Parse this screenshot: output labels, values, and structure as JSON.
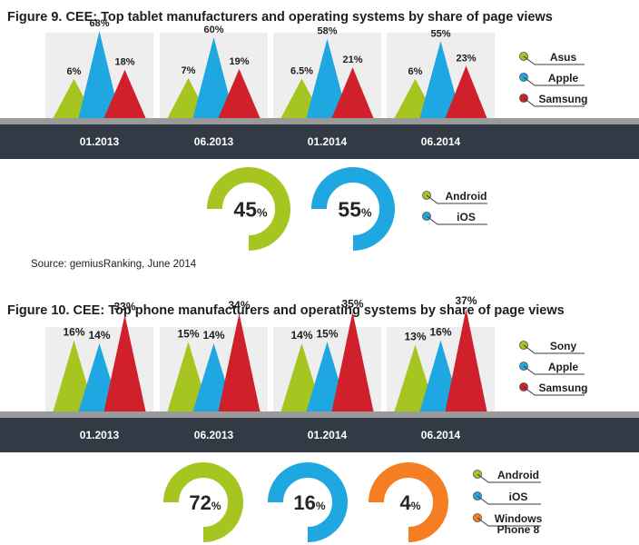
{
  "colors": {
    "green": "#a7c520",
    "blue": "#1ea7e0",
    "red": "#d0202c",
    "orange": "#f57e22",
    "panel": "#eeeeee",
    "bar": "#323a45",
    "bar_top": "#9a9a9a"
  },
  "figure9": {
    "title": "Figure 9. CEE: Top tablet manufacturers and operating systems by share of page views",
    "source": "Source: gemiusRanking, June 2014"
  },
  "figure10": {
    "title": "Figure 10. CEE: Top phone manufacturers and operating systems by share of page views"
  },
  "chart_data": [
    {
      "type": "bar",
      "title": "Figure 9. CEE: Top tablet manufacturers and operating systems by share of page views",
      "categories": [
        "01.2013",
        "06.2013",
        "01.2014",
        "06.2014"
      ],
      "series": [
        {
          "name": "Asus",
          "color": "#a7c520",
          "values": [
            6,
            7,
            6.5,
            6
          ],
          "labels": [
            "6%",
            "7%",
            "6.5%",
            "6%"
          ]
        },
        {
          "name": "Apple",
          "color": "#1ea7e0",
          "values": [
            68,
            60,
            58,
            55
          ],
          "labels": [
            "68%",
            "60%",
            "58%",
            "55%"
          ]
        },
        {
          "name": "Samsung",
          "color": "#d0202c",
          "values": [
            18,
            19,
            21,
            23
          ],
          "labels": [
            "18%",
            "19%",
            "21%",
            "23%"
          ]
        }
      ],
      "ylim": [
        0,
        100
      ]
    },
    {
      "type": "pie",
      "title": "",
      "slices": [
        {
          "name": "Android",
          "value": 45,
          "color": "#a7c520",
          "label": "45"
        },
        {
          "name": "iOS",
          "value": 55,
          "color": "#1ea7e0",
          "label": "55"
        }
      ]
    },
    {
      "type": "bar",
      "title": "Figure 10. CEE: Top phone manufacturers and operating systems by share of page views",
      "categories": [
        "01.2013",
        "06.2013",
        "01.2014",
        "06.2014"
      ],
      "series": [
        {
          "name": "Sony",
          "color": "#a7c520",
          "values": [
            16,
            15,
            14,
            13
          ],
          "labels": [
            "16%",
            "15%",
            "14%",
            "13%"
          ]
        },
        {
          "name": "Apple",
          "color": "#1ea7e0",
          "values": [
            14,
            14,
            15,
            16
          ],
          "labels": [
            "14%",
            "14%",
            "15%",
            "16%"
          ]
        },
        {
          "name": "Samsung",
          "color": "#d0202c",
          "values": [
            33,
            34,
            35,
            37
          ],
          "labels": [
            "33%",
            "34%",
            "35%",
            "37%"
          ]
        }
      ],
      "ylim": [
        0,
        100
      ]
    },
    {
      "type": "pie",
      "title": "",
      "slices": [
        {
          "name": "Android",
          "value": 72,
          "color": "#a7c520",
          "label": "72"
        },
        {
          "name": "iOS",
          "value": 16,
          "color": "#1ea7e0",
          "label": "16"
        },
        {
          "name": "Windows Phone 8",
          "value": 4,
          "color": "#f57e22",
          "label": "4"
        }
      ]
    }
  ],
  "pct_sign": "%"
}
